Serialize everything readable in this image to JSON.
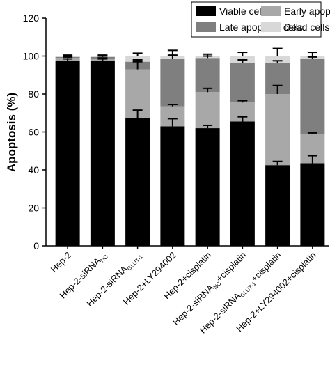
{
  "chart_data": {
    "type": "stacked-bar",
    "y_label": "Apoptosis (%)",
    "categories": [
      [
        "Hep-2"
      ],
      [
        "Hep-2-siRNA",
        "NC"
      ],
      [
        "Hep-2-siRNA",
        "GLUT-1"
      ],
      [
        "Hep-2+LY294002"
      ],
      [
        "Hep-2+cisplatin"
      ],
      [
        "Hep-2-siRNA",
        "NC",
        "+cisplatin"
      ],
      [
        "Hep-2-siRNA",
        "GLUT-1",
        "+cisplatin"
      ],
      [
        "Hep-2+LY294002+cisplatin"
      ]
    ],
    "series": [
      {
        "name": "Viable cells",
        "color": "#000000",
        "values": [
          97.5,
          97.5,
          67.5,
          63,
          62,
          65.5,
          42.5,
          43.5
        ],
        "errors": [
          1,
          1,
          4,
          4,
          1.5,
          2.5,
          2,
          4
        ]
      },
      {
        "name": "Early apoptotic cells",
        "color": "#a8a8a8",
        "values": [
          1.5,
          1,
          25.5,
          10.5,
          19,
          10,
          37.5,
          15.5
        ],
        "errors": [
          0.5,
          0.5,
          4,
          1,
          2,
          1,
          4.5,
          0.5
        ]
      },
      {
        "name": "Late apoptotic cells",
        "color": "#7f7f7f",
        "values": [
          0.5,
          1,
          4,
          25,
          18,
          21,
          16.5,
          39.5
        ],
        "errors": [
          0.5,
          0.5,
          1,
          2,
          1,
          1.5,
          1,
          1
        ]
      },
      {
        "name": "Dead cells",
        "color": "#d8d8d8",
        "values": [
          0.5,
          0.5,
          3,
          1.5,
          1,
          3.5,
          3.5,
          1.5
        ],
        "errors": [
          0.5,
          0.5,
          1.5,
          3,
          1,
          2,
          4,
          2
        ]
      }
    ],
    "ylim": [
      0,
      120
    ],
    "yticks": [
      0,
      20,
      40,
      60,
      80,
      100,
      120
    ]
  }
}
